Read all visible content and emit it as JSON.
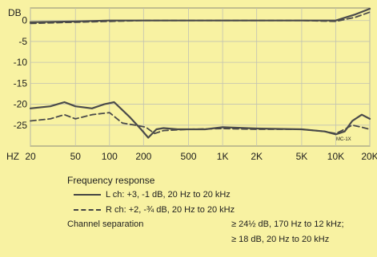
{
  "chart_data": {
    "type": "line",
    "title": "",
    "ylabel": "DB",
    "xlabel": "HZ",
    "x_scale": "log",
    "xlim": [
      20,
      20000
    ],
    "ylim": [
      -30,
      3
    ],
    "grid": true,
    "x_ticks": [
      {
        "v": 20,
        "label": "20"
      },
      {
        "v": 50,
        "label": "50"
      },
      {
        "v": 100,
        "label": "100"
      },
      {
        "v": 200,
        "label": "200"
      },
      {
        "v": 500,
        "label": "500"
      },
      {
        "v": 1000,
        "label": "1K"
      },
      {
        "v": 2000,
        "label": "2K"
      },
      {
        "v": 5000,
        "label": "5K"
      },
      {
        "v": 10000,
        "label": "10K"
      },
      {
        "v": 20000,
        "label": "20K"
      }
    ],
    "y_ticks": [
      {
        "v": 0,
        "label": "0"
      },
      {
        "v": -5,
        "label": "-5"
      },
      {
        "v": -10,
        "label": "-10"
      },
      {
        "v": -15,
        "label": "-15"
      },
      {
        "v": -20,
        "label": "-20"
      },
      {
        "v": -25,
        "label": "-25"
      }
    ],
    "annotation": "MC-1X",
    "series": [
      {
        "group": "frequency-response",
        "style": "solid",
        "x": [
          20,
          50,
          100,
          200,
          500,
          1000,
          2000,
          5000,
          10000,
          15000,
          20000
        ],
        "y": [
          -0.4,
          -0.2,
          0,
          0,
          0,
          0,
          0,
          0,
          0,
          1.5,
          2.8
        ]
      },
      {
        "group": "frequency-response",
        "style": "dashed",
        "x": [
          20,
          50,
          100,
          200,
          500,
          1000,
          2000,
          5000,
          10000,
          15000,
          20000
        ],
        "y": [
          -0.7,
          -0.4,
          -0.2,
          0,
          0,
          0,
          0,
          0,
          -0.2,
          0.8,
          2
        ]
      },
      {
        "group": "separation",
        "style": "solid",
        "x": [
          20,
          30,
          40,
          50,
          70,
          90,
          110,
          150,
          190,
          220,
          260,
          300,
          400,
          700,
          1000,
          2000,
          5000,
          8000,
          10000,
          12000,
          14000,
          17000,
          20000
        ],
        "y": [
          -21,
          -20.5,
          -19.5,
          -20.5,
          -21,
          -20,
          -19.5,
          -23,
          -26,
          -28,
          -26,
          -25.7,
          -26,
          -26,
          -25.5,
          -25.8,
          -26,
          -26.5,
          -27.2,
          -26.5,
          -24,
          -22.5,
          -23.5
        ]
      },
      {
        "group": "separation",
        "style": "dashed",
        "x": [
          20,
          30,
          40,
          50,
          70,
          100,
          130,
          170,
          210,
          250,
          300,
          500,
          1000,
          2000,
          5000,
          8000,
          10000,
          12000,
          14000,
          17000,
          20000
        ],
        "y": [
          -24,
          -23.5,
          -22.5,
          -23.5,
          -22.5,
          -22,
          -24.5,
          -25,
          -25.5,
          -27,
          -26.3,
          -26,
          -25.8,
          -26,
          -26,
          -26.5,
          -27,
          -26,
          -25,
          -25.5,
          -26
        ]
      }
    ]
  },
  "legend": {
    "heading": "Frequency response",
    "l_ch": "L ch: +3, -1 dB, 20 Hz to 20 kHz",
    "r_ch": "R ch: +2, -¾ dB, 20 Hz to 20 kHz",
    "separation_label": "Channel separation",
    "separation_value_1": "≥ 24½ dB, 170 Hz to 12 kHz;",
    "separation_value_2": "≥ 18 dB, 20 Hz to 20 kHz"
  }
}
